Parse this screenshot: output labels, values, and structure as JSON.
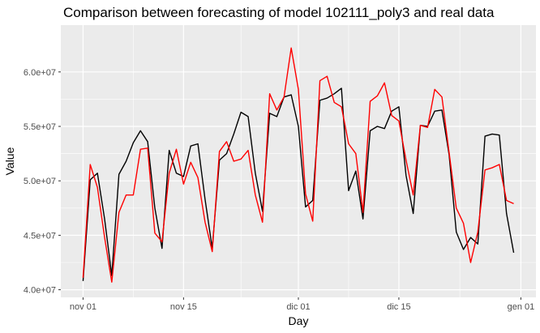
{
  "chart_data": {
    "type": "line",
    "title": "Comparison between forecasting of model  102111_poly3  and real data",
    "xlabel": "Day",
    "ylabel": "Value",
    "x_tick_labels": [
      "nov 01",
      "nov 15",
      "dic 01",
      "dic 15",
      "gen 01"
    ],
    "x_tick_days": [
      0,
      14,
      30,
      44,
      61
    ],
    "y_tick_labels": [
      "4.0e+07",
      "4.5e+07",
      "5.0e+07",
      "5.5e+07",
      "6.0e+07"
    ],
    "y_tick_values": [
      40000000,
      45000000,
      50000000,
      55000000,
      60000000
    ],
    "xlim": [
      -3.1,
      63.1
    ],
    "ylim": [
      39300000,
      64300000
    ],
    "x_start": "nov 01",
    "grid": true,
    "colors": {
      "panel": "#ebebeb",
      "grid": "#ffffff",
      "real": "#000000",
      "forecast": "#ff0000"
    },
    "series": [
      {
        "key": "real",
        "color": "#000000",
        "values": [
          40800000,
          50100000,
          50700000,
          46500000,
          41300000,
          50600000,
          51800000,
          53500000,
          54600000,
          53600000,
          47500000,
          43800000,
          52800000,
          50700000,
          50400000,
          53200000,
          53400000,
          48300000,
          43800000,
          51900000,
          52500000,
          54300000,
          56300000,
          55900000,
          50700000,
          47200000,
          56200000,
          55900000,
          57700000,
          57900000,
          55000000,
          47600000,
          48200000,
          57400000,
          57600000,
          58000000,
          58500000,
          49100000,
          50900000,
          46500000,
          54600000,
          55000000,
          54800000,
          56400000,
          56800000,
          50500000,
          47000000,
          55100000,
          55000000,
          56400000,
          56500000,
          52400000,
          45300000,
          43700000,
          44800000,
          44200000,
          54100000,
          54300000,
          54200000,
          47000000,
          43400000
        ]
      },
      {
        "key": "forecast",
        "color": "#ff0000",
        "values": [
          41100000,
          51500000,
          49400000,
          44800000,
          40700000,
          47100000,
          48700000,
          48700000,
          52900000,
          53000000,
          45200000,
          44400000,
          50700000,
          52900000,
          49700000,
          51700000,
          50300000,
          46200000,
          43500000,
          52700000,
          53600000,
          51800000,
          52000000,
          52800000,
          48700000,
          46200000,
          58000000,
          56500000,
          57700000,
          62200000,
          58400000,
          48800000,
          46300000,
          59200000,
          59600000,
          57200000,
          56800000,
          53400000,
          52500000,
          47100000,
          57300000,
          57800000,
          59000000,
          56000000,
          55500000,
          51900000,
          48700000,
          55100000,
          54900000,
          58400000,
          57700000,
          52600000,
          47500000,
          46100000,
          42500000,
          45300000,
          51000000,
          51200000,
          51500000,
          48200000,
          47900000
        ]
      }
    ]
  }
}
